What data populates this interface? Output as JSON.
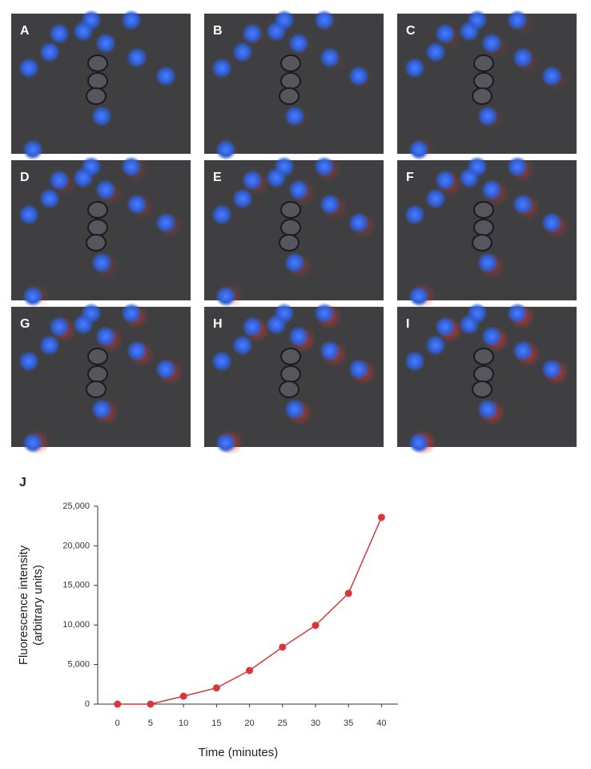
{
  "panels": [
    "A",
    "B",
    "C",
    "D",
    "E",
    "F",
    "G",
    "H",
    "I"
  ],
  "chart_data": {
    "type": "line",
    "label": "J",
    "x_label": "Time (minutes)",
    "y_label": [
      "Fluorescence intensity",
      "(arbitrary units)"
    ],
    "x": [
      0,
      5,
      10,
      15,
      20,
      25,
      30,
      35,
      40
    ],
    "series": [
      {
        "color": "#d9363a",
        "values": [
          0,
          0,
          1000,
          2050,
          4250,
          7200,
          9950,
          14000,
          23600
        ]
      }
    ],
    "xlim": [
      -3,
      42.5
    ],
    "xticks": [
      0,
      5,
      10,
      15,
      20,
      25,
      30,
      35,
      40
    ],
    "ylim": [
      0,
      25000
    ],
    "yticks": [
      0,
      {
        "value": 5000,
        "label": "5,000"
      },
      {
        "value": 10000,
        "label": "10,000"
      },
      {
        "value": 15000,
        "label": "15,000"
      },
      {
        "value": 20000,
        "label": "20,000"
      },
      {
        "value": 25000,
        "label": "25,000"
      }
    ]
  }
}
